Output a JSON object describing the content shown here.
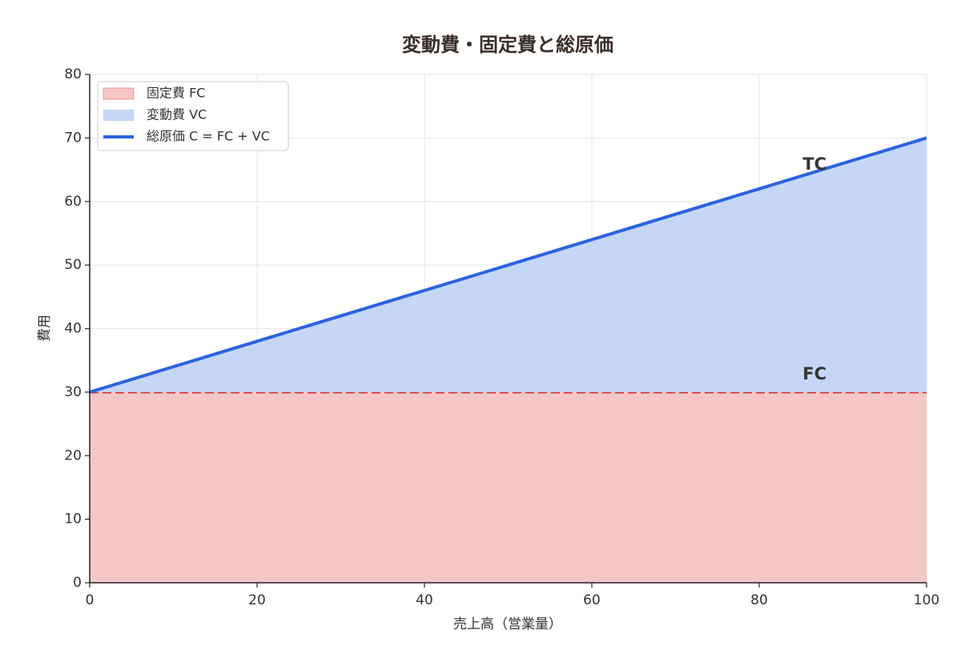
{
  "chart_data": {
    "type": "area",
    "title": "変動費・固定費と総原価",
    "x_label": "売上高（営業量）",
    "y_label": "費用",
    "x": [
      0,
      100
    ],
    "series": [
      {
        "name": "固定費 FC",
        "kind": "area",
        "color": "#f5c6c6",
        "edge_color": "#d62728",
        "edge_style": "dashed",
        "values": [
          30,
          30
        ]
      },
      {
        "name": "変動費 VC",
        "kind": "area",
        "stack": true,
        "color": "#c6d6f7",
        "values": [
          0,
          40
        ]
      },
      {
        "name": "総原価 C = FC + VC",
        "kind": "line",
        "color": "#2b63e0",
        "values": [
          30,
          70
        ]
      }
    ],
    "annotations": [
      {
        "text": "TC",
        "x": 85,
        "y": 65,
        "color": "#2b63e0"
      },
      {
        "text": "FC",
        "x": 85,
        "y": 32,
        "color": "#d62728"
      }
    ],
    "xlim": [
      0,
      100
    ],
    "xticks": [
      0,
      20,
      40,
      60,
      80,
      100
    ],
    "ylim": [
      0,
      80
    ],
    "yticks": [
      0,
      10,
      20,
      30,
      40,
      50,
      60,
      70,
      80
    ],
    "grid": true,
    "legend": "upper left"
  }
}
